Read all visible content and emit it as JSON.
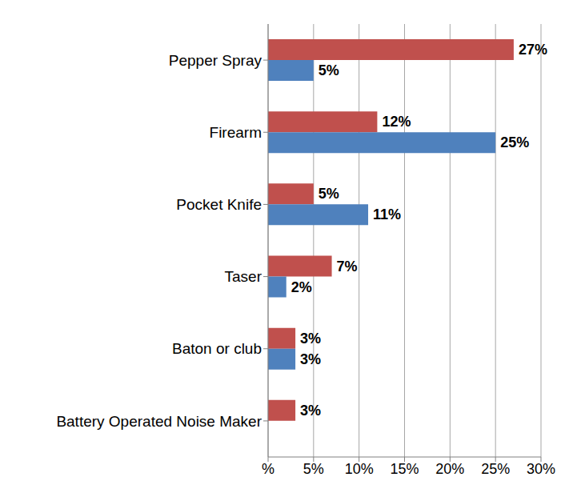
{
  "chart_data": {
    "type": "bar",
    "orientation": "horizontal",
    "categories": [
      "Pepper Spray",
      "Firearm",
      "Pocket Knife",
      "Taser",
      "Baton or club",
      "Battery Operated Noise Maker"
    ],
    "series": [
      {
        "color": "#c0504d",
        "values": [
          27,
          12,
          5,
          7,
          3,
          3
        ],
        "value_labels": [
          "27%",
          "12%",
          "5%",
          "7%",
          "3%",
          "3%"
        ]
      },
      {
        "color": "#4f81bd",
        "values": [
          5,
          25,
          11,
          2,
          3,
          null
        ],
        "value_labels": [
          "5%",
          "25%",
          "11%",
          "2%",
          "3%",
          null
        ]
      }
    ],
    "xlim": [
      0,
      30
    ],
    "xticks": [
      {
        "value": 0,
        "label": "%"
      },
      {
        "value": 5,
        "label": "5%"
      },
      {
        "value": 10,
        "label": "10%"
      },
      {
        "value": 15,
        "label": "15%"
      },
      {
        "value": 20,
        "label": "20%"
      },
      {
        "value": 25,
        "label": "25%"
      },
      {
        "value": 30,
        "label": "30%"
      }
    ],
    "grid": true,
    "data_labels": true
  }
}
